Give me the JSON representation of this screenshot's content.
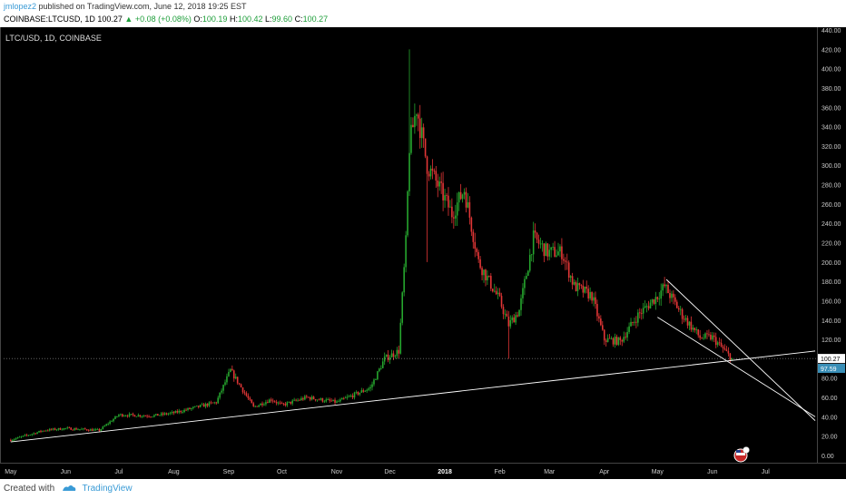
{
  "header": {
    "author": "jmlopez2",
    "published": "published on TradingView.com, June 12, 2018 19:25 EST",
    "symbol": "COINBASE:LTCUSD, 1D",
    "last": "100.27",
    "change": "▲ +0.08 (+0.08%)",
    "o_label": "O:",
    "o": "100.19",
    "h_label": "H:",
    "h": "100.42",
    "l_label": "L:",
    "l": "99.60",
    "c_label": "C:",
    "c": "100.27"
  },
  "footer": {
    "created": "Created with",
    "brand": "TradingView"
  },
  "chart_data": {
    "type": "candlestick",
    "title": "LTC/USD, 1D, COINBASE",
    "ylim": [
      0,
      440
    ],
    "yticks": [
      "0.00",
      "20.00",
      "40.00",
      "60.00",
      "80.00",
      "100.00",
      "120.00",
      "140.00",
      "160.00",
      "180.00",
      "200.00",
      "220.00",
      "240.00",
      "260.00",
      "280.00",
      "300.00",
      "320.00",
      "340.00",
      "360.00",
      "380.00",
      "400.00",
      "420.00",
      "440.00"
    ],
    "xticks": [
      "May",
      "Jun",
      "Jul",
      "Aug",
      "Sep",
      "Oct",
      "Nov",
      "Dec",
      "2018",
      "Feb",
      "Mar",
      "Apr",
      "May",
      "Jun",
      "Jul"
    ],
    "xtick_dates": [
      "2017-05-01",
      "2017-06-01",
      "2017-07-01",
      "2017-08-01",
      "2017-09-01",
      "2017-10-01",
      "2017-11-01",
      "2017-12-01",
      "2018-01-01",
      "2018-02-01",
      "2018-03-01",
      "2018-04-01",
      "2018-05-01",
      "2018-06-01",
      "2018-07-01"
    ],
    "price_path": [
      [
        "2017-05-01",
        16
      ],
      [
        "2017-05-20",
        26
      ],
      [
        "2017-06-01",
        28
      ],
      [
        "2017-06-20",
        26
      ],
      [
        "2017-07-01",
        42
      ],
      [
        "2017-07-20",
        41
      ],
      [
        "2017-08-01",
        44
      ],
      [
        "2017-08-25",
        55
      ],
      [
        "2017-09-02",
        88
      ],
      [
        "2017-09-15",
        50
      ],
      [
        "2017-09-25",
        58
      ],
      [
        "2017-10-01",
        52
      ],
      [
        "2017-10-15",
        60
      ],
      [
        "2017-11-01",
        55
      ],
      [
        "2017-11-20",
        70
      ],
      [
        "2017-11-28",
        100
      ],
      [
        "2017-12-06",
        108
      ],
      [
        "2017-12-10",
        220
      ],
      [
        "2017-12-12",
        320
      ],
      [
        "2017-12-16",
        360
      ],
      [
        "2017-12-22",
        300
      ],
      [
        "2017-12-28",
        280
      ],
      [
        "2018-01-05",
        250
      ],
      [
        "2018-01-12",
        275
      ],
      [
        "2018-01-20",
        200
      ],
      [
        "2018-02-01",
        160
      ],
      [
        "2018-02-06",
        135
      ],
      [
        "2018-02-12",
        150
      ],
      [
        "2018-02-20",
        225
      ],
      [
        "2018-02-28",
        210
      ],
      [
        "2018-03-08",
        210
      ],
      [
        "2018-03-15",
        175
      ],
      [
        "2018-03-25",
        165
      ],
      [
        "2018-04-01",
        120
      ],
      [
        "2018-04-10",
        118
      ],
      [
        "2018-04-20",
        145
      ],
      [
        "2018-05-01",
        165
      ],
      [
        "2018-05-05",
        175
      ],
      [
        "2018-05-15",
        145
      ],
      [
        "2018-05-25",
        122
      ],
      [
        "2018-06-01",
        122
      ],
      [
        "2018-06-12",
        100
      ]
    ],
    "last_price": 100.27,
    "last_price_label": "100.27",
    "second_price": 97.59,
    "second_price_label": "97.59",
    "trendlines": [
      {
        "from": [
          "2017-05-01",
          14
        ],
        "to": [
          "2018-07-29",
          108
        ],
        "color": "#ffffff"
      },
      {
        "from": [
          "2018-05-06",
          182
        ],
        "to": [
          "2018-07-29",
          36
        ],
        "color": "#ffffff"
      },
      {
        "from": [
          "2018-05-01",
          143
        ],
        "to": [
          "2018-07-29",
          40
        ],
        "color": "#ffffff"
      }
    ],
    "colors": {
      "up": "#26a62e",
      "down": "#e23636",
      "bg": "#000000",
      "axis_text": "#cccccc",
      "last_price_bg": "#ffffff",
      "second_price_bg": "#3a8fb7"
    }
  }
}
